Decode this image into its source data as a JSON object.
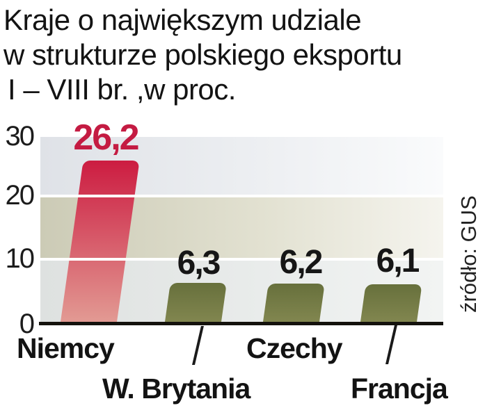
{
  "title": {
    "line1": "Kraje o największym udziale",
    "line2": "w strukturze polskiego eksportu",
    "line3": "I – VIII br. ,w proc."
  },
  "source": "źródło: GUS",
  "y_axis": {
    "ticks": [
      "30",
      "20",
      "10",
      "0"
    ]
  },
  "colors": {
    "bar_red_top": "#cc1c41",
    "bar_red_bottom": "#e29a93",
    "bar_olive_top": "#67703c",
    "bar_olive_bottom": "#81864f",
    "value_red": "#c41b42",
    "value_black": "#161616",
    "axis_black": "#14120d",
    "band_gray_left": "#dfe2e7",
    "band_beige_left": "#cccbb6",
    "band_gray2_left": "#dee1e0"
  },
  "chart_data": {
    "type": "bar",
    "title": "Kraje o największym udziale w strukturze polskiego eksportu I – VIII br. ,w proc.",
    "categories": [
      "Niemcy",
      "W. Brytania",
      "Czechy",
      "Francja"
    ],
    "values": [
      26.2,
      6.3,
      6.2,
      6.1
    ],
    "value_labels": [
      "26,2",
      "6,3",
      "6,2",
      "6,1"
    ],
    "series_colors": [
      "red",
      "olive",
      "olive",
      "olive"
    ],
    "xlabel": "",
    "ylabel": "",
    "ylim": [
      0,
      30
    ],
    "yticks": [
      0,
      10,
      20,
      30
    ],
    "grid": "horizontal-white-lines-on-shaded-bands",
    "legend": "none",
    "source": "źródło: GUS"
  }
}
